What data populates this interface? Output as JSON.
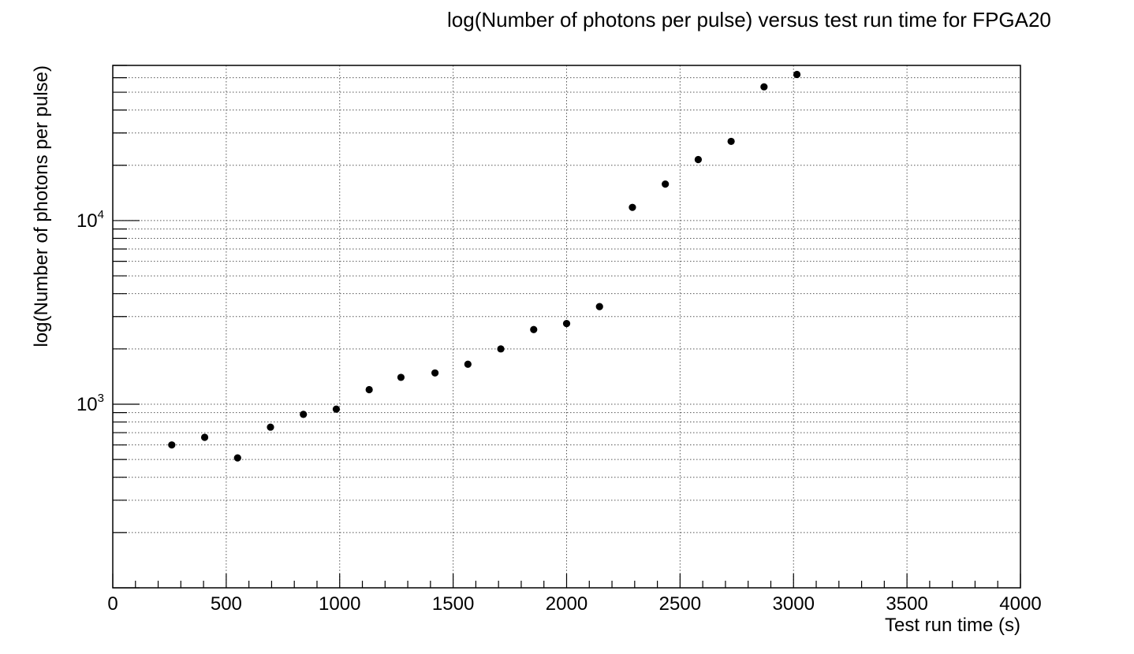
{
  "chart_data": {
    "type": "scatter",
    "title": "log(Number of photons per pulse) versus test run time for FPGA20",
    "xlabel": "Test run time (s)",
    "ylabel": "log(Number of photons per pulse)",
    "xlim": [
      0,
      4000
    ],
    "ylim": [
      100,
      70000
    ],
    "y_scale": "log",
    "grid": true,
    "x_ticks": [
      0,
      500,
      1000,
      1500,
      2000,
      2500,
      3000,
      3500,
      4000
    ],
    "x_tick_labels": [
      "0",
      "500",
      "1000",
      "1500",
      "2000",
      "2500",
      "3000",
      "3500",
      "4000"
    ],
    "y_ticks": [
      {
        "value": 1000,
        "base": "10",
        "exp": "3"
      },
      {
        "value": 10000,
        "base": "10",
        "exp": "4"
      }
    ],
    "points": [
      {
        "x": 260,
        "y": 600
      },
      {
        "x": 405,
        "y": 660
      },
      {
        "x": 550,
        "y": 510
      },
      {
        "x": 695,
        "y": 750
      },
      {
        "x": 840,
        "y": 880
      },
      {
        "x": 985,
        "y": 940
      },
      {
        "x": 1130,
        "y": 1200
      },
      {
        "x": 1270,
        "y": 1400
      },
      {
        "x": 1420,
        "y": 1480
      },
      {
        "x": 1565,
        "y": 1650
      },
      {
        "x": 1710,
        "y": 2000
      },
      {
        "x": 1855,
        "y": 2550
      },
      {
        "x": 2000,
        "y": 2750
      },
      {
        "x": 2145,
        "y": 3400
      },
      {
        "x": 2290,
        "y": 11800
      },
      {
        "x": 2435,
        "y": 15800
      },
      {
        "x": 2580,
        "y": 21500
      },
      {
        "x": 2725,
        "y": 27000
      },
      {
        "x": 2870,
        "y": 53500
      },
      {
        "x": 3015,
        "y": 62500
      }
    ]
  }
}
